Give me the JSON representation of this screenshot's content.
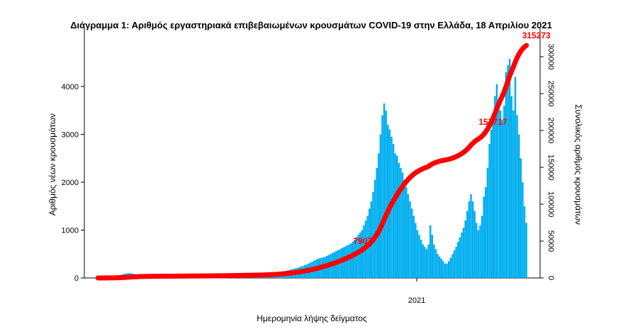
{
  "chart_data": {
    "type": "bar",
    "title": "Διάγραμμα 1: Αριθμός εργαστηριακά επιβεβαιωμένων κρουσμάτων COVID-19 στην Ελλάδα, 18 Απριλίου 2021",
    "xlabel": "Ημερομηνία λήψης δείγματος",
    "ylabel_left": "Αριθμός νέων κρουσμάτων",
    "ylabel_right": "Συνολικός αριθμός κρουσμάτων",
    "x_tick_labels": [
      "2021"
    ],
    "y_left_ticks": [
      0,
      1000,
      2000,
      3000,
      4000
    ],
    "y_right_ticks": [
      0,
      50000,
      100000,
      150000,
      200000,
      250000,
      300000
    ],
    "ylim_left": [
      0,
      5000
    ],
    "ylim_right": [
      0,
      320000
    ],
    "bar_color": "#00aeef",
    "line_color": "#ff0000",
    "series": [
      {
        "kind": "bar",
        "axis": "left",
        "values": [
          0,
          0,
          0,
          0,
          10,
          11,
          18,
          20,
          25,
          30,
          40,
          50,
          60,
          70,
          80,
          90,
          98,
          102,
          95,
          88,
          80,
          70,
          60,
          55,
          50,
          45,
          40,
          30,
          25,
          20,
          18,
          15,
          12,
          10,
          10,
          10,
          10,
          8,
          8,
          10,
          10,
          10,
          12,
          12,
          15,
          15,
          15,
          15,
          15,
          15,
          10,
          10,
          10,
          10,
          10,
          10,
          12,
          12,
          12,
          12,
          15,
          15,
          15,
          15,
          20,
          20,
          20,
          20,
          20,
          20,
          20,
          20,
          25,
          25,
          25,
          25,
          30,
          30,
          30,
          30,
          30,
          30,
          30,
          30,
          30,
          40,
          40,
          40,
          40,
          40,
          40,
          50,
          50,
          60,
          70,
          80,
          90,
          100,
          110,
          120,
          130,
          140,
          150,
          160,
          170,
          180,
          190,
          200,
          210,
          220,
          240,
          250,
          270,
          280,
          300,
          320,
          340,
          360,
          380,
          400,
          410,
          420,
          430,
          440,
          460,
          480,
          500,
          520,
          540,
          560,
          580,
          600,
          620,
          640,
          660,
          680,
          700,
          720,
          760,
          800,
          850,
          900,
          950,
          1000,
          1100,
          1200,
          1300,
          1450,
          1600,
          1800,
          2050,
          2300,
          2600,
          3000,
          3400,
          3650,
          3500,
          3200,
          3100,
          2950,
          2800,
          2600,
          2550,
          2400,
          2300,
          2200,
          2050,
          1900,
          1750,
          1600,
          1450,
          1300,
          1150,
          1000,
          900,
          800,
          700,
          650,
          600,
          700,
          1100,
          900,
          700,
          600,
          500,
          450,
          400,
          350,
          300,
          300,
          350,
          420,
          500,
          580,
          650,
          750,
          850,
          950,
          1050,
          1200,
          1400,
          1600,
          1750,
          1600,
          1400,
          1150,
          1000,
          1100,
          1300,
          1700,
          1900,
          2300,
          2800,
          3100,
          3400,
          3800,
          4050,
          3700,
          3500,
          3300,
          3600,
          4300,
          4450,
          4577,
          3800,
          3500,
          4200,
          3400,
          3000,
          2500,
          2000,
          1500,
          1150
        ]
      },
      {
        "kind": "line",
        "axis": "right",
        "name": "",
        "annotations": [
          {
            "index": 142,
            "label": "7907"
          },
          {
            "index": 210,
            "label": "157717"
          },
          {
            "index": 248,
            "label": "315273"
          }
        ],
        "final_value": 315273
      }
    ]
  }
}
